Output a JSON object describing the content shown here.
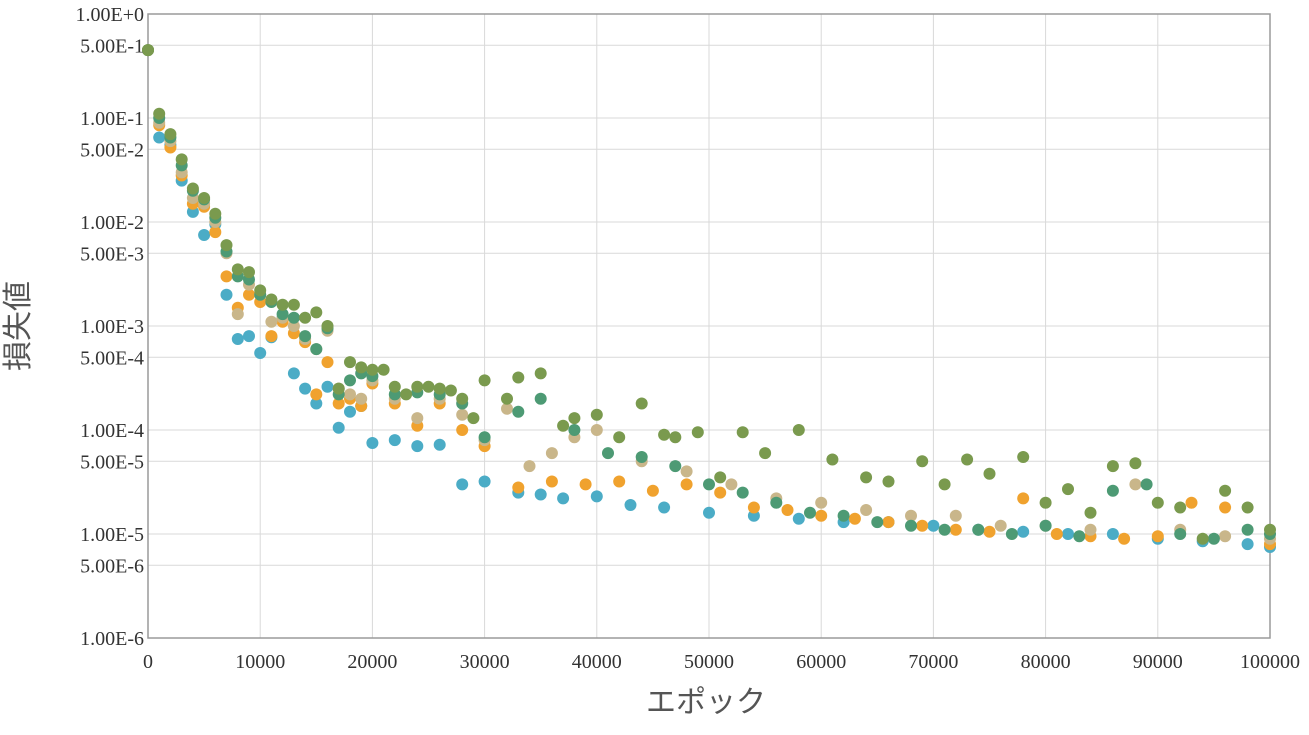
{
  "chart_data": {
    "type": "scatter",
    "xlabel": "エポック",
    "ylabel": "損失値",
    "xlim": [
      0,
      100000
    ],
    "ylim": [
      1e-06,
      1
    ],
    "yscale": "log",
    "grid": true,
    "legend": "none",
    "x_ticks": [
      "0",
      "10000",
      "20000",
      "30000",
      "40000",
      "50000",
      "60000",
      "70000",
      "80000",
      "90000",
      "100000"
    ],
    "y_ticks": [
      {
        "value": 1,
        "label": "1.00E+0"
      },
      {
        "value": 0.5,
        "label": "5.00E-1"
      },
      {
        "value": 0.1,
        "label": "1.00E-1"
      },
      {
        "value": 0.05,
        "label": "5.00E-2"
      },
      {
        "value": 0.01,
        "label": "1.00E-2"
      },
      {
        "value": 0.005,
        "label": "5.00E-3"
      },
      {
        "value": 0.001,
        "label": "1.00E-3"
      },
      {
        "value": 0.0005,
        "label": "5.00E-4"
      },
      {
        "value": 0.0001,
        "label": "1.00E-4"
      },
      {
        "value": 5e-05,
        "label": "5.00E-5"
      },
      {
        "value": 1e-05,
        "label": "1.00E-5"
      },
      {
        "value": 5e-06,
        "label": "5.00E-6"
      },
      {
        "value": 1e-06,
        "label": "1.00E-6"
      }
    ],
    "series": [
      {
        "color": "#4bacc6",
        "x": [
          0,
          1000,
          2000,
          3000,
          4000,
          5000,
          6000,
          7000,
          8000,
          9000,
          10000,
          11000,
          12000,
          13000,
          14000,
          15000,
          16000,
          17000,
          18000,
          19000,
          20000,
          22000,
          24000,
          26000,
          28000,
          30000,
          33000,
          35000,
          37000,
          40000,
          43000,
          46000,
          50000,
          54000,
          58000,
          62000,
          66000,
          70000,
          74000,
          78000,
          82000,
          86000,
          90000,
          94000,
          98000,
          100000
        ],
        "y": [
          0.45,
          0.065,
          0.055,
          0.025,
          0.0125,
          0.0075,
          0.0095,
          0.002,
          0.00075,
          0.0008,
          0.00055,
          0.00078,
          0.0012,
          0.00035,
          0.00025,
          0.00018,
          0.00026,
          0.000105,
          0.00015,
          0.00017,
          7.5e-05,
          8e-05,
          7e-05,
          7.2e-05,
          3e-05,
          3.2e-05,
          2.5e-05,
          2.4e-05,
          2.2e-05,
          2.3e-05,
          1.9e-05,
          1.8e-05,
          1.6e-05,
          1.5e-05,
          1.4e-05,
          1.3e-05,
          1.3e-05,
          1.2e-05,
          1.1e-05,
          1.05e-05,
          1e-05,
          1e-05,
          9e-06,
          8.5e-06,
          8e-06,
          7.5e-06
        ]
      },
      {
        "color": "#f0a22e",
        "x": [
          0,
          1000,
          2000,
          3000,
          4000,
          5000,
          6000,
          7000,
          8000,
          9000,
          10000,
          11000,
          12000,
          13000,
          14000,
          15000,
          16000,
          17000,
          18000,
          19000,
          20000,
          22000,
          24000,
          26000,
          28000,
          30000,
          33000,
          36000,
          39000,
          42000,
          45000,
          48000,
          51000,
          54000,
          57000,
          60000,
          63000,
          66000,
          69000,
          72000,
          75000,
          78000,
          81000,
          84000,
          87000,
          90000,
          93000,
          96000,
          100000
        ],
        "y": [
          0.45,
          0.085,
          0.052,
          0.028,
          0.015,
          0.014,
          0.008,
          0.003,
          0.0015,
          0.002,
          0.0017,
          0.0008,
          0.0011,
          0.00085,
          0.0007,
          0.00022,
          0.00045,
          0.00018,
          0.0002,
          0.00017,
          0.00028,
          0.00018,
          0.00011,
          0.00018,
          0.0001,
          7e-05,
          2.8e-05,
          3.2e-05,
          3e-05,
          3.2e-05,
          2.6e-05,
          3e-05,
          2.5e-05,
          1.8e-05,
          1.7e-05,
          1.5e-05,
          1.4e-05,
          1.3e-05,
          1.2e-05,
          1.1e-05,
          1.05e-05,
          2.2e-05,
          1e-05,
          9.5e-06,
          9e-06,
          9.5e-06,
          2e-05,
          1.8e-05,
          8e-06
        ]
      },
      {
        "color": "#c9b68a",
        "x": [
          0,
          1000,
          2000,
          3000,
          4000,
          5000,
          6000,
          7000,
          8000,
          9000,
          10000,
          11000,
          12000,
          13000,
          14000,
          15000,
          16000,
          17000,
          18000,
          19000,
          20000,
          22000,
          24000,
          26000,
          28000,
          30000,
          32000,
          34000,
          36000,
          38000,
          40000,
          44000,
          48000,
          52000,
          56000,
          60000,
          64000,
          68000,
          72000,
          76000,
          80000,
          84000,
          88000,
          92000,
          96000,
          100000
        ],
        "y": [
          0.45,
          0.09,
          0.06,
          0.03,
          0.017,
          0.015,
          0.01,
          0.005,
          0.0013,
          0.0025,
          0.002,
          0.0011,
          0.0012,
          0.001,
          0.00075,
          0.0006,
          0.0009,
          0.00025,
          0.00022,
          0.0002,
          0.0003,
          0.0002,
          0.00013,
          0.0002,
          0.00014,
          8e-05,
          0.00016,
          4.5e-05,
          6e-05,
          8.5e-05,
          0.0001,
          5e-05,
          4e-05,
          3e-05,
          2.2e-05,
          2e-05,
          1.7e-05,
          1.5e-05,
          1.5e-05,
          1.2e-05,
          1.2e-05,
          1.1e-05,
          3e-05,
          1.1e-05,
          9.5e-06,
          9e-06
        ]
      },
      {
        "color": "#4d9a74",
        "x": [
          0,
          1000,
          2000,
          3000,
          4000,
          5000,
          6000,
          7000,
          8000,
          9000,
          10000,
          11000,
          12000,
          13000,
          14000,
          15000,
          16000,
          17000,
          18000,
          19000,
          20000,
          22000,
          24000,
          26000,
          28000,
          30000,
          33000,
          35000,
          38000,
          41000,
          44000,
          47000,
          50000,
          53000,
          56000,
          59000,
          62000,
          65000,
          68000,
          71000,
          74000,
          77000,
          80000,
          83000,
          86000,
          89000,
          92000,
          95000,
          98000,
          100000
        ],
        "y": [
          0.45,
          0.1,
          0.065,
          0.035,
          0.02,
          0.0165,
          0.011,
          0.0052,
          0.003,
          0.0028,
          0.002,
          0.0017,
          0.0013,
          0.0012,
          0.0008,
          0.0006,
          0.00095,
          0.00022,
          0.0003,
          0.00035,
          0.00033,
          0.00022,
          0.00023,
          0.00022,
          0.00018,
          8.5e-05,
          0.00015,
          0.0002,
          0.0001,
          6e-05,
          5.5e-05,
          4.5e-05,
          3e-05,
          2.5e-05,
          2e-05,
          1.6e-05,
          1.5e-05,
          1.3e-05,
          1.2e-05,
          1.1e-05,
          1.1e-05,
          1e-05,
          1.2e-05,
          9.5e-06,
          2.6e-05,
          3e-05,
          1e-05,
          9e-06,
          1.1e-05,
          1e-05
        ]
      },
      {
        "color": "#7a9a4e",
        "x": [
          0,
          1000,
          2000,
          3000,
          4000,
          5000,
          6000,
          7000,
          8000,
          9000,
          10000,
          11000,
          12000,
          13000,
          14000,
          15000,
          16000,
          17000,
          18000,
          19000,
          20000,
          21000,
          22000,
          23000,
          24000,
          25000,
          26000,
          27000,
          28000,
          29000,
          30000,
          32000,
          33000,
          35000,
          37000,
          38000,
          40000,
          42000,
          44000,
          46000,
          47000,
          49000,
          51000,
          53000,
          55000,
          58000,
          61000,
          64000,
          66000,
          69000,
          71000,
          73000,
          75000,
          78000,
          80000,
          82000,
          84000,
          86000,
          88000,
          90000,
          92000,
          94000,
          96000,
          98000,
          100000
        ],
        "y": [
          0.45,
          0.11,
          0.07,
          0.04,
          0.021,
          0.017,
          0.012,
          0.006,
          0.0035,
          0.0033,
          0.0022,
          0.0018,
          0.0016,
          0.0016,
          0.0012,
          0.00135,
          0.001,
          0.00025,
          0.00045,
          0.0004,
          0.00038,
          0.00038,
          0.00026,
          0.00022,
          0.00026,
          0.00026,
          0.00025,
          0.00024,
          0.0002,
          0.00013,
          0.0003,
          0.0002,
          0.00032,
          0.00035,
          0.00011,
          0.00013,
          0.00014,
          8.5e-05,
          0.00018,
          9e-05,
          8.5e-05,
          9.5e-05,
          3.5e-05,
          9.5e-05,
          6e-05,
          0.0001,
          5.2e-05,
          3.5e-05,
          3.2e-05,
          5e-05,
          3e-05,
          5.2e-05,
          3.8e-05,
          5.5e-05,
          2e-05,
          2.7e-05,
          1.6e-05,
          4.5e-05,
          4.8e-05,
          2e-05,
          1.8e-05,
          9e-06,
          2.6e-05,
          1.8e-05,
          1.1e-05
        ]
      }
    ]
  }
}
